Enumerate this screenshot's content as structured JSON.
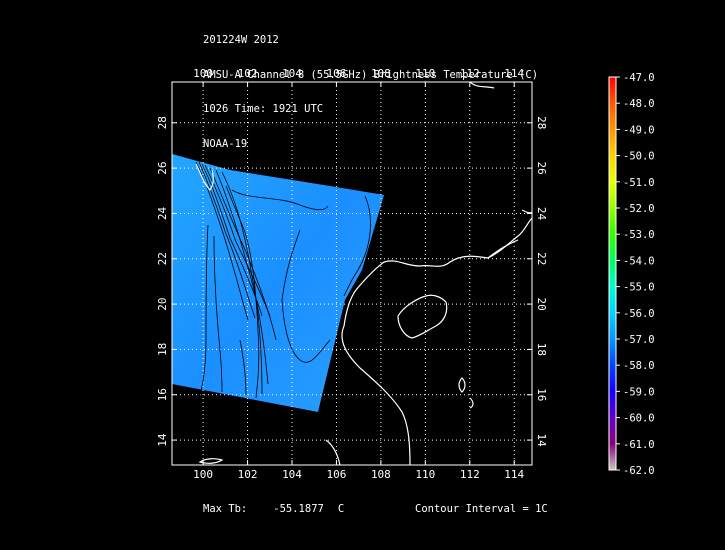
{
  "header": {
    "line1": "201224W 2012",
    "line2": "AMSU-A Channel 8 (55.5GHz) Brightness Temperature (C)",
    "line3": "1026 Time: 1921 UTC",
    "line4": "NOAA-19"
  },
  "map": {
    "lon_ticks": [
      "100",
      "102",
      "104",
      "106",
      "108",
      "110",
      "112",
      "114"
    ],
    "lat_ticks": [
      "14",
      "16",
      "18",
      "20",
      "22",
      "24",
      "26",
      "28"
    ],
    "lon_range": [
      98.6,
      114.8
    ],
    "lat_range": [
      12.9,
      29.8
    ]
  },
  "colorbar": {
    "labels": [
      "-47.0",
      "-48.0",
      "-49.0",
      "-50.0",
      "-51.0",
      "-52.0",
      "-53.0",
      "-54.0",
      "-55.0",
      "-56.0",
      "-57.0",
      "-58.0",
      "-59.0",
      "-60.0",
      "-61.0",
      "-62.0"
    ],
    "colors": [
      "#ff0000",
      "#ff5a00",
      "#ff9600",
      "#ffd200",
      "#e6ff00",
      "#96ff00",
      "#32ff00",
      "#00ff64",
      "#00ffd2",
      "#00d2ff",
      "#0096ff",
      "#0046ff",
      "#1400ff",
      "#6400c8",
      "#8c0078",
      "#c8c8c8"
    ]
  },
  "footer": {
    "max_label": "Max Tb:",
    "max_value": "-55.1877",
    "max_unit": "C",
    "contour": "Contour Interval = 1C"
  },
  "swath_color": "#1e9bff"
}
